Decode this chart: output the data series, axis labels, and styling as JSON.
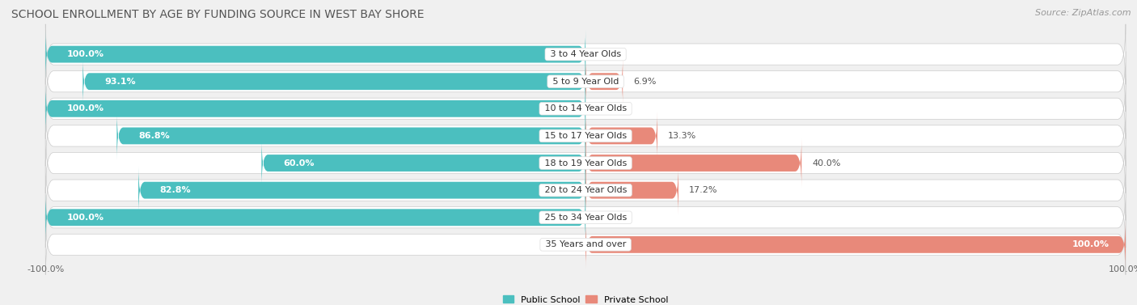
{
  "title": "SCHOOL ENROLLMENT BY AGE BY FUNDING SOURCE IN WEST BAY SHORE",
  "source": "Source: ZipAtlas.com",
  "categories": [
    "3 to 4 Year Olds",
    "5 to 9 Year Old",
    "10 to 14 Year Olds",
    "15 to 17 Year Olds",
    "18 to 19 Year Olds",
    "20 to 24 Year Olds",
    "25 to 34 Year Olds",
    "35 Years and over"
  ],
  "public_values": [
    100.0,
    93.1,
    100.0,
    86.8,
    60.0,
    82.8,
    100.0,
    0.0
  ],
  "private_values": [
    0.0,
    6.9,
    0.0,
    13.3,
    40.0,
    17.2,
    0.0,
    100.0
  ],
  "public_color": "#4BBFBF",
  "private_color": "#E8897A",
  "bg_color": "#f0f0f0",
  "row_bg_color": "#ffffff",
  "bar_height": 0.62,
  "title_fontsize": 10,
  "bar_label_fontsize": 8,
  "category_fontsize": 8,
  "tick_fontsize": 8,
  "source_fontsize": 8,
  "legend_fontsize": 8
}
